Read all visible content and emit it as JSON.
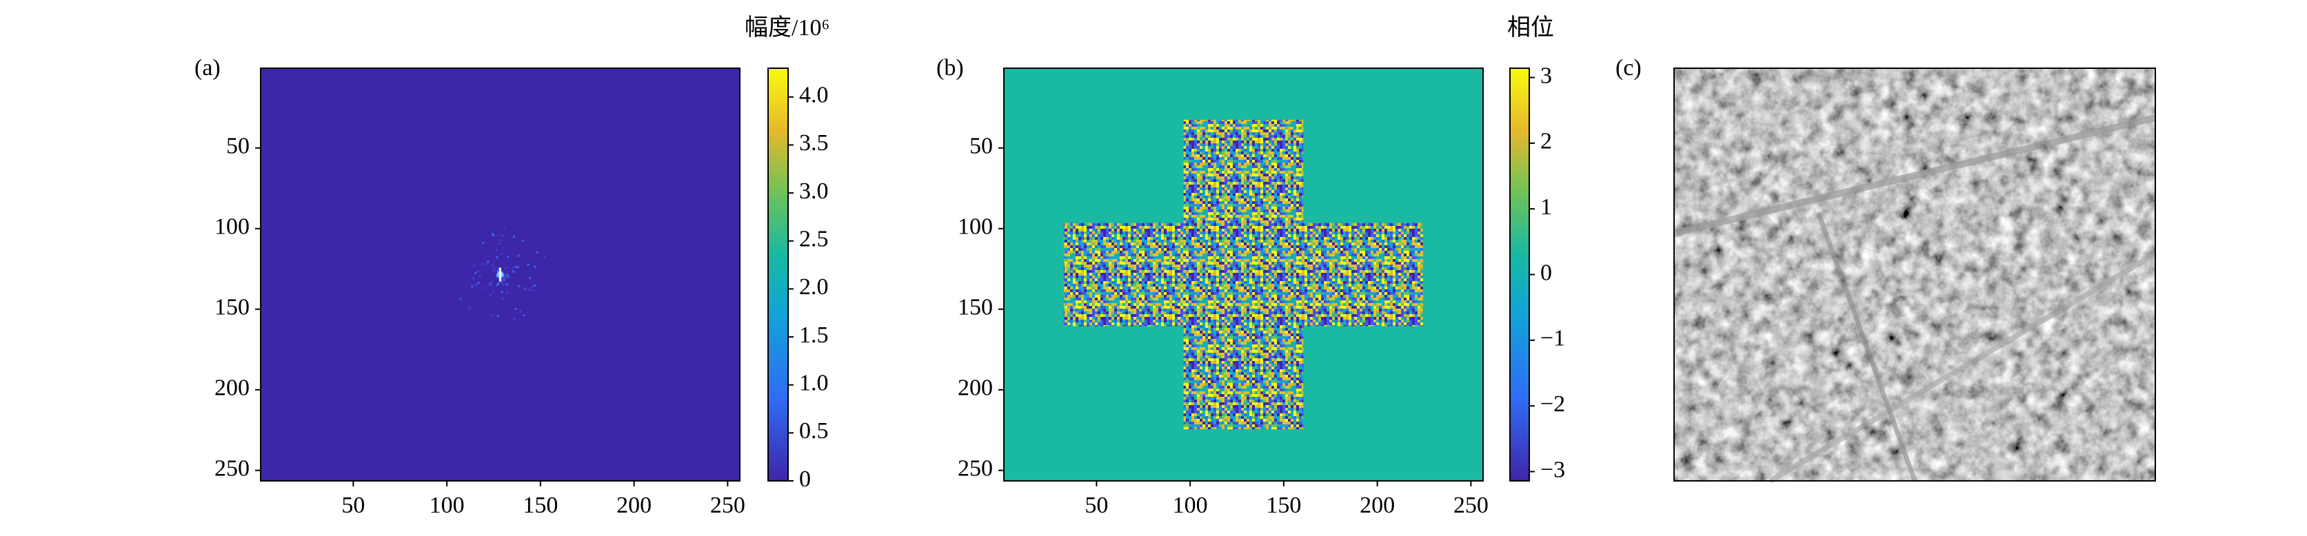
{
  "chart_data": [
    {
      "type": "heatmap",
      "label": "(a)",
      "colorbar_label": "幅度/10⁶",
      "xlim": [
        0.5,
        256.5
      ],
      "ylim": [
        256.5,
        0.5
      ],
      "xticks": [
        50,
        100,
        150,
        200,
        250
      ],
      "yticks": [
        50,
        100,
        150,
        200,
        250
      ],
      "clim": [
        0,
        4.3
      ],
      "cticks": [
        0,
        0.5,
        {
          "value": 1,
          "label": "1.0"
        },
        1.5,
        {
          "value": 2,
          "label": "2.0"
        },
        2.5,
        {
          "value": 3,
          "label": "3.0"
        },
        3.5,
        {
          "value": 4,
          "label": "4.0"
        }
      ]
    },
    {
      "type": "heatmap",
      "label": "(b)",
      "colorbar_label": "相位",
      "xlim": [
        0.5,
        256.5
      ],
      "ylim": [
        256.5,
        0.5
      ],
      "xticks": [
        50,
        100,
        150,
        200,
        250
      ],
      "yticks": [
        50,
        100,
        150,
        200,
        250
      ],
      "clim": [
        -3.1416,
        3.1416
      ],
      "cticks": [
        {
          "value": -3,
          "label": "−3"
        },
        {
          "value": -2,
          "label": "−2"
        },
        {
          "value": -1,
          "label": "−1"
        },
        0,
        1,
        2,
        3
      ]
    },
    {
      "type": "image",
      "label": "(c)"
    }
  ]
}
